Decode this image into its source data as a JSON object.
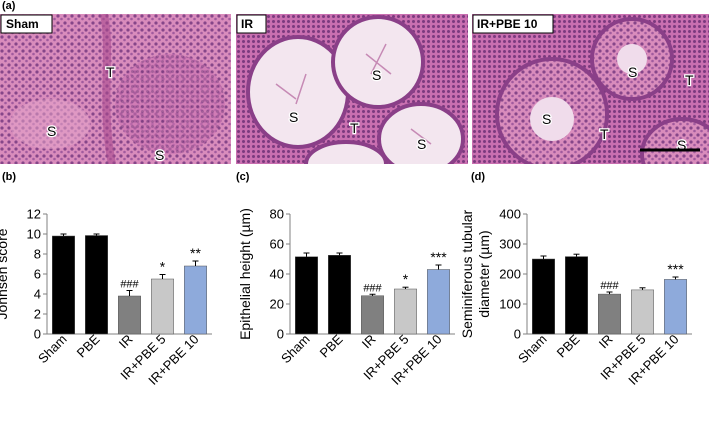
{
  "figure": {
    "letters": [
      "(a)",
      "(b)",
      "(c)",
      "(d)"
    ],
    "micrograph_labels": [
      "Sham",
      "IR",
      "IR+PBE 10"
    ],
    "region_labels": {
      "seminiferous": "S",
      "interstitial": "T"
    },
    "colors": {
      "tissue_pink": "#d77fb5",
      "tissue_dark": "#6a2f78",
      "lumen": "#f3e6ef",
      "bar_black": "#000000",
      "bar_dark_gray": "#808080",
      "bar_light_gray": "#c8c8c8",
      "bar_blue": "#8eaadb"
    }
  },
  "chart_data": [
    {
      "type": "bar",
      "panel": "(b)",
      "categories": [
        "Sham",
        "PBE",
        "IR",
        "IR+PBE 5",
        "IR+PBE 10"
      ],
      "values": [
        9.8,
        9.85,
        3.8,
        5.5,
        6.8
      ],
      "errors": [
        0.2,
        0.15,
        0.55,
        0.45,
        0.5
      ],
      "annotations": [
        "",
        "",
        "###",
        "*",
        "**"
      ],
      "ylabel": "Johnsen score",
      "ylim": [
        0,
        12
      ],
      "yticks": [
        0,
        2,
        4,
        6,
        8,
        10,
        12
      ],
      "colors": [
        "#000000",
        "#000000",
        "#808080",
        "#c8c8c8",
        "#8eaadb"
      ],
      "grid": false
    },
    {
      "type": "bar",
      "panel": "(c)",
      "categories": [
        "Sham",
        "PBE",
        "IR",
        "IR+PBE 5",
        "IR+PBE 10"
      ],
      "values": [
        51.5,
        52.5,
        25.5,
        30,
        43
      ],
      "errors": [
        2.5,
        1.5,
        1,
        1.2,
        3
      ],
      "annotations": [
        "",
        "",
        "###",
        "*",
        "***"
      ],
      "ylabel": "Epithelial height (µm)",
      "ylim": [
        0,
        80
      ],
      "yticks": [
        0,
        20,
        40,
        60,
        80
      ],
      "colors": [
        "#000000",
        "#000000",
        "#808080",
        "#c8c8c8",
        "#8eaadb"
      ],
      "grid": false
    },
    {
      "type": "bar",
      "panel": "(d)",
      "categories": [
        "Sham",
        "PBE",
        "IR",
        "IR+PBE 5",
        "IR+PBE 10"
      ],
      "values": [
        250,
        258,
        133,
        147,
        182
      ],
      "errors": [
        10,
        8,
        7,
        7,
        8
      ],
      "annotations": [
        "",
        "",
        "###",
        "",
        "***"
      ],
      "ylabel_lines": [
        "Seminiferous tubular",
        "diameter (µm)"
      ],
      "ylim": [
        0,
        400
      ],
      "yticks": [
        0,
        100,
        200,
        300,
        400
      ],
      "colors": [
        "#000000",
        "#000000",
        "#808080",
        "#c8c8c8",
        "#8eaadb"
      ],
      "grid": false
    }
  ]
}
